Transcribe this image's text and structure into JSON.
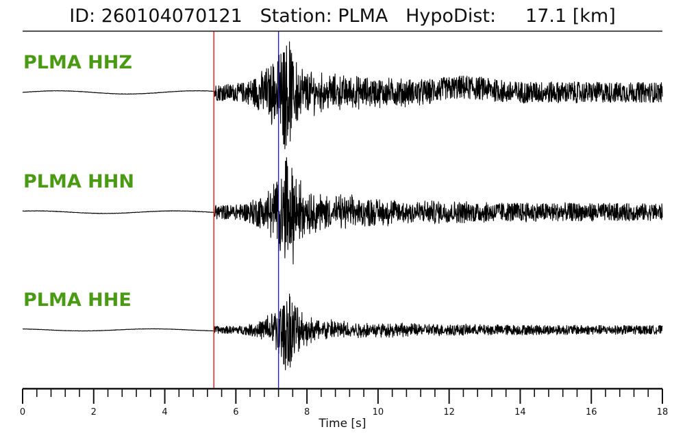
{
  "title": {
    "id_label": "ID:",
    "id_value": "260104070121",
    "station_label": "Station:",
    "station_value": "PLMA",
    "dist_label": "HypoDist:",
    "dist_value": "17.1",
    "dist_unit": "[km]"
  },
  "chart_data": {
    "type": "line",
    "xlabel": "Time [s]",
    "xlim": [
      0,
      18
    ],
    "x_major_ticks": [
      0,
      2,
      4,
      6,
      8,
      10,
      12,
      14,
      16,
      18
    ],
    "x_minor_step": 0.4,
    "grid": false,
    "picks": [
      {
        "phase_color": "#e8141b",
        "time": 5.38
      },
      {
        "phase_color": "#2222aa",
        "time": 7.2
      }
    ],
    "label_color": "#4a9a14",
    "trace_color": "#000000",
    "series": [
      {
        "name": "PLMA HHZ",
        "pre_noise": 0.04,
        "post_noise": 0.35,
        "peak_time": 7.35,
        "peak_amp_up": 1.0,
        "peak_amp_down": 1.3,
        "coda_decay": 0.5
      },
      {
        "name": "PLMA HHN",
        "pre_noise": 0.03,
        "post_noise": 0.28,
        "peak_time": 7.4,
        "peak_amp_up": 1.2,
        "peak_amp_down": 0.7,
        "coda_decay": 0.45
      },
      {
        "name": "PLMA HHE",
        "pre_noise": 0.03,
        "post_noise": 0.18,
        "peak_time": 7.35,
        "peak_amp_up": 0.7,
        "peak_amp_down": 1.0,
        "coda_decay": 0.55
      }
    ]
  }
}
